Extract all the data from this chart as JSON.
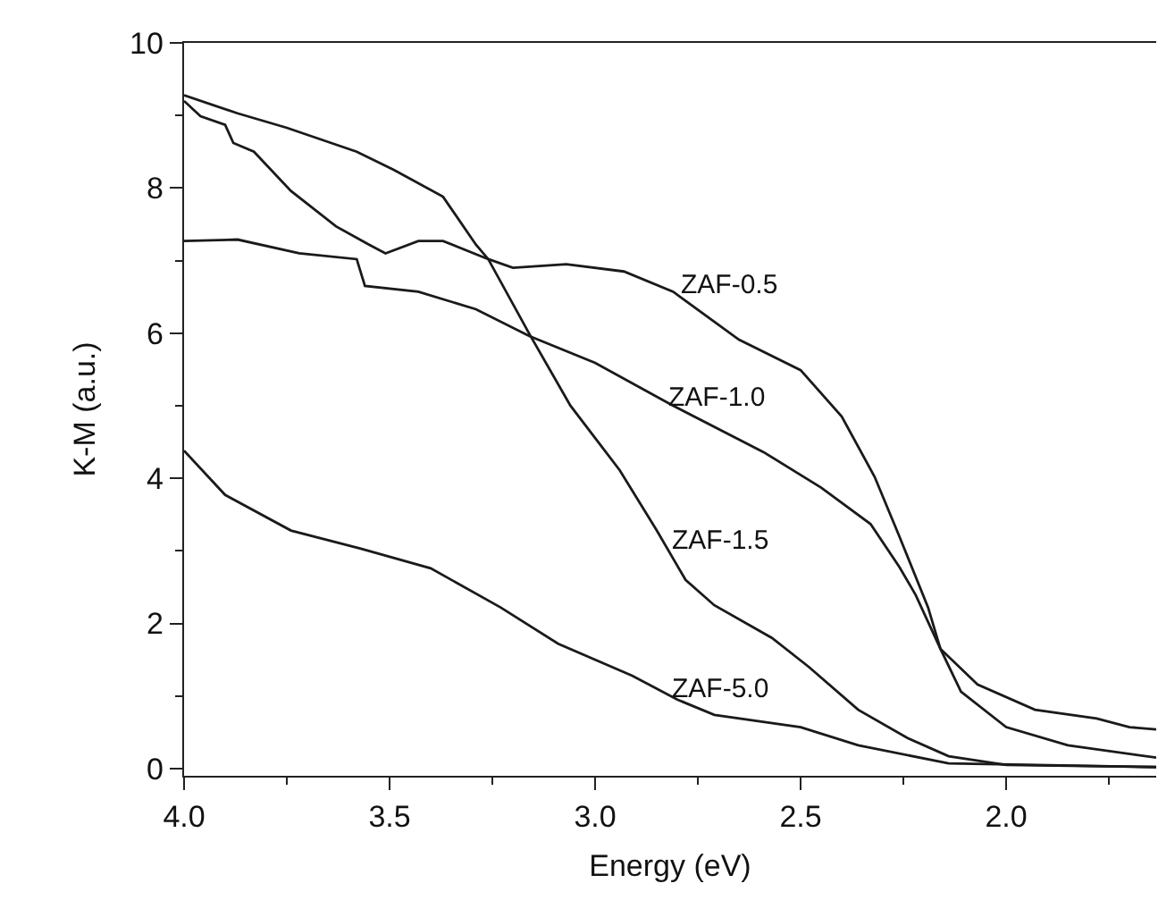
{
  "chart_data": {
    "type": "line",
    "xlabel": "Energy (eV)",
    "ylabel": "K-M (a.u.)",
    "xlim": [
      4.0,
      1.635
    ],
    "xticks": [
      {
        "value": 4.0,
        "label": "4.0"
      },
      {
        "value": 3.5,
        "label": "3.5"
      },
      {
        "value": 3.0,
        "label": "3.0"
      },
      {
        "value": 2.5,
        "label": "2.5"
      },
      {
        "value": 2.0,
        "label": "2.0"
      }
    ],
    "ylim": [
      -0.1,
      10
    ],
    "yticks": [
      0,
      2,
      4,
      6,
      8,
      10
    ],
    "marker": "none",
    "line_style": "solid",
    "series": [
      {
        "color": "#1a1a1a",
        "x": [
          4.0,
          3.96,
          3.9,
          3.88,
          3.83,
          3.74,
          3.63,
          3.55,
          3.51,
          3.43,
          3.37,
          3.26,
          3.2,
          3.07,
          2.93,
          2.81,
          2.65,
          2.5,
          2.4,
          2.32,
          2.26,
          2.19,
          2.16,
          2.11,
          2.0,
          1.85,
          1.635
        ],
        "values": [
          9.2,
          8.99,
          8.87,
          8.62,
          8.5,
          7.96,
          7.47,
          7.22,
          7.1,
          7.27,
          7.27,
          7.02,
          6.9,
          6.95,
          6.85,
          6.57,
          5.91,
          5.49,
          4.85,
          4.02,
          3.2,
          2.22,
          1.65,
          1.06,
          0.57,
          0.32,
          0.15
        ]
      },
      {
        "color": "#1a1a1a",
        "x": [
          4.0,
          3.87,
          3.72,
          3.58,
          3.56,
          3.43,
          3.29,
          3.16,
          3.0,
          2.81,
          2.59,
          2.45,
          2.33,
          2.26,
          2.22,
          2.16,
          2.07,
          1.93,
          1.78,
          1.7,
          1.635
        ],
        "values": [
          7.27,
          7.29,
          7.1,
          7.02,
          6.65,
          6.57,
          6.33,
          5.96,
          5.59,
          5.0,
          4.36,
          3.87,
          3.37,
          2.78,
          2.39,
          1.65,
          1.16,
          0.81,
          0.69,
          0.57,
          0.54
        ]
      },
      {
        "color": "#1a1a1a",
        "x": [
          4.0,
          3.87,
          3.75,
          3.58,
          3.49,
          3.37,
          3.29,
          3.26,
          3.16,
          3.06,
          2.94,
          2.85,
          2.78,
          2.71,
          2.57,
          2.48,
          2.36,
          2.24,
          2.14,
          2.0,
          1.635
        ],
        "values": [
          9.28,
          9.03,
          8.83,
          8.5,
          8.25,
          7.88,
          7.22,
          7.02,
          5.99,
          5.0,
          4.11,
          3.28,
          2.6,
          2.25,
          1.8,
          1.4,
          0.81,
          0.42,
          0.17,
          0.05,
          0.02
        ]
      },
      {
        "color": "#1a1a1a",
        "x": [
          4.0,
          3.9,
          3.74,
          3.57,
          3.4,
          3.23,
          3.09,
          2.91,
          2.8,
          2.71,
          2.5,
          2.36,
          2.14,
          1.635
        ],
        "values": [
          4.38,
          3.77,
          3.28,
          3.03,
          2.76,
          2.22,
          1.72,
          1.28,
          0.95,
          0.74,
          0.57,
          0.32,
          0.07,
          0.02
        ]
      }
    ],
    "annotations": [
      {
        "text": "ZAF-0.5",
        "x": 2.8,
        "y": 6.65
      },
      {
        "text": "ZAF-1.0",
        "x": 2.83,
        "y": 5.12
      },
      {
        "text": "ZAF-1.5",
        "x": 2.82,
        "y": 3.15
      },
      {
        "text": "ZAF-5.0",
        "x": 2.82,
        "y": 1.1
      }
    ]
  }
}
